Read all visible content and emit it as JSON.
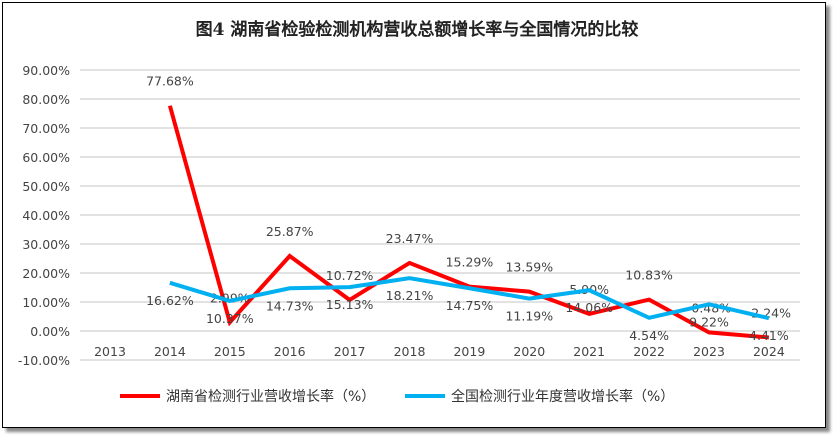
{
  "chart_data": {
    "type": "line",
    "title": "图4  湖南省检验检测机构营收总额增长率与全国情况的比较",
    "categories": [
      "2013",
      "2014",
      "2015",
      "2016",
      "2017",
      "2018",
      "2019",
      "2020",
      "2021",
      "2022",
      "2023",
      "2024"
    ],
    "ylim": [
      -10,
      90
    ],
    "yticks": [
      "-10.00%",
      "0.00%",
      "10.00%",
      "20.00%",
      "30.00%",
      "40.00%",
      "50.00%",
      "60.00%",
      "70.00%",
      "80.00%",
      "90.00%"
    ],
    "grid": true,
    "legend": "bottom",
    "series": [
      {
        "name": "湖南省检测行业营收增长率（%）",
        "color": "#ff0000",
        "values": [
          null,
          77.68,
          2.99,
          25.87,
          10.72,
          23.47,
          15.29,
          13.59,
          5.9,
          10.83,
          -0.48,
          -2.24
        ],
        "labels": [
          null,
          "77.68%",
          "2.99%",
          "25.87%",
          "10.72%",
          "23.47%",
          "15.29%",
          "13.59%",
          "5.90%",
          "10.83%",
          "-0.48%",
          "-2.24%"
        ]
      },
      {
        "name": "全国检测行业年度营收增长率（%）",
        "color": "#00b0f0",
        "values": [
          null,
          16.62,
          10.37,
          14.73,
          15.13,
          18.21,
          14.75,
          11.19,
          14.06,
          4.54,
          9.22,
          4.41
        ],
        "labels": [
          null,
          "16.62%",
          "10.37%",
          "14.73%",
          "15.13%",
          "18.21%",
          "14.75%",
          "11.19%",
          "14.06%",
          "4.54%",
          "9.22%",
          "4.41%"
        ]
      }
    ]
  }
}
